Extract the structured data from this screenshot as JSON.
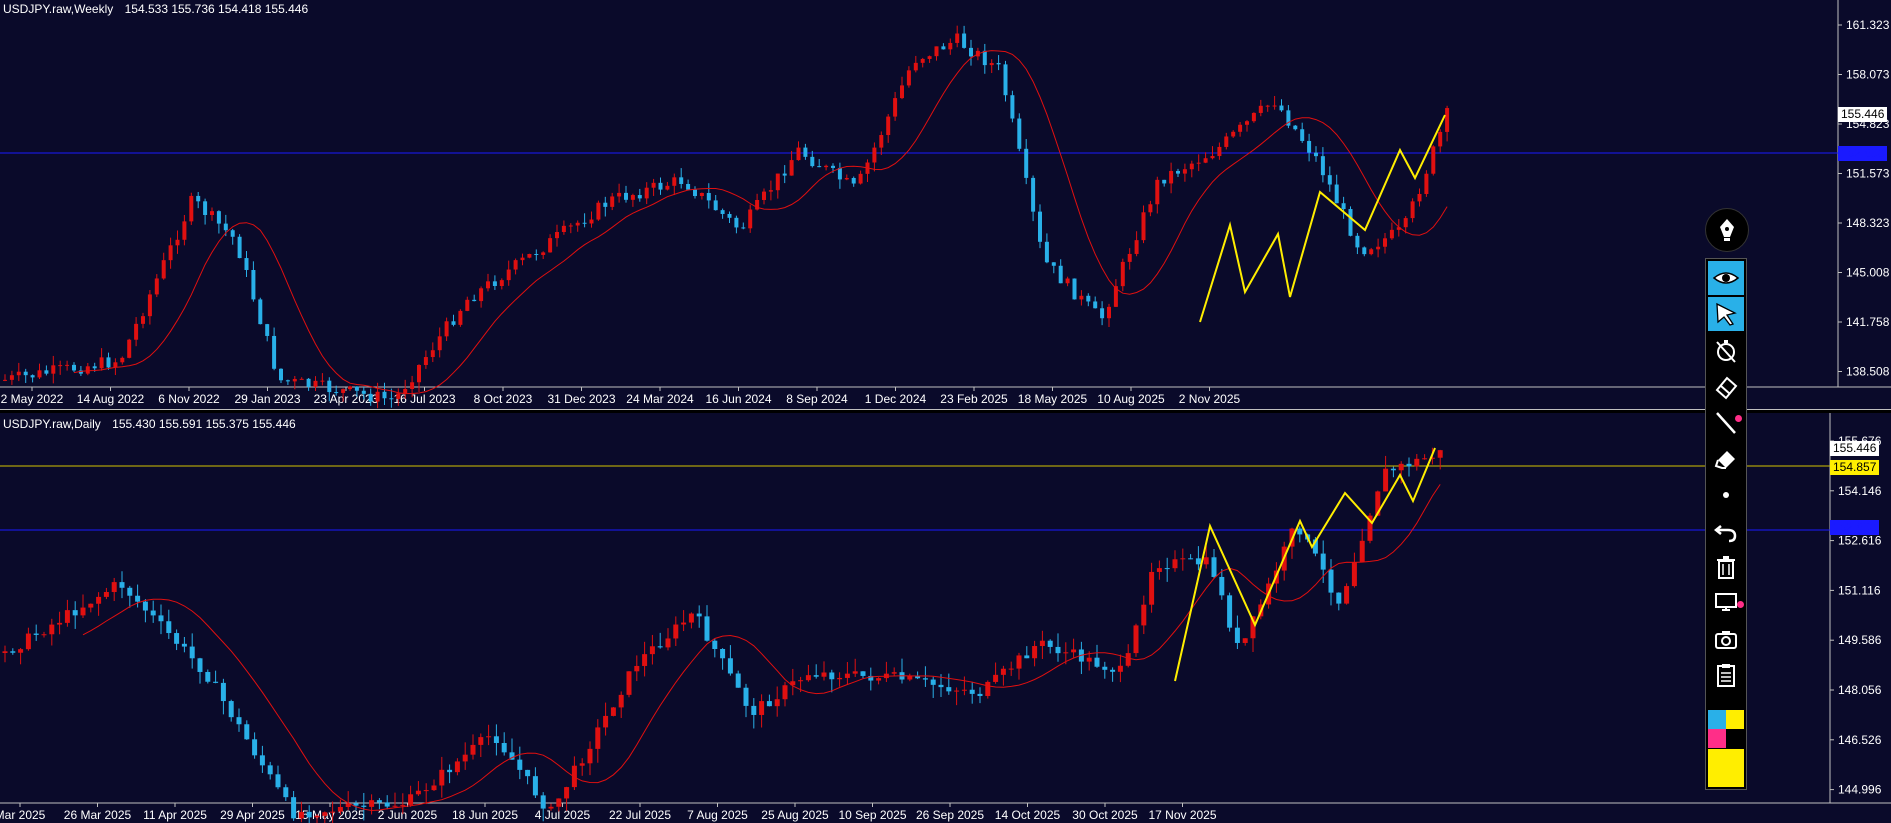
{
  "colors": {
    "background": "#0a0a2a",
    "bull": "#e01010",
    "bear": "#29b0e8",
    "ma": "#e01010",
    "zigzag": "#ffee00",
    "hline_blue": "#1a1aff",
    "hline_yellow": "#d4c400"
  },
  "top": {
    "symbol": "USDJPY.raw,Weekly",
    "ohlc": "154.533 155.736 154.418 155.446",
    "price_labels": [
      "161.323",
      "158.073",
      "154.823",
      "151.573",
      "148.323",
      "145.008",
      "141.758",
      "138.508"
    ],
    "current_price": "155.446",
    "blue_level": "152.800",
    "date_labels": [
      "2 May 2022",
      "14 Aug 2022",
      "6 Nov 2022",
      "29 Jan 2023",
      "23 Apr 2023",
      "16 Jul 2023",
      "8 Oct 2023",
      "31 Dec 2023",
      "24 Mar 2024",
      "16 Jun 2024",
      "8 Sep 2024",
      "1 Dec 2024",
      "23 Feb 2025",
      "18 May 2025",
      "10 Aug 2025",
      "2 Nov 2025"
    ]
  },
  "bottom": {
    "symbol": "USDJPY.raw,Daily",
    "ohlc": "155.430 155.591 155.375 155.446",
    "price_labels": [
      "155.676",
      "154.146",
      "152.616",
      "151.116",
      "149.586",
      "148.056",
      "146.526",
      "144.996"
    ],
    "current_price": "155.446",
    "yellow_level": "154.857",
    "blue_level": "152.800",
    "date_labels": [
      "Mar 2025",
      "26 Mar 2025",
      "11 Apr 2025",
      "29 Apr 2025",
      "15 May 2025",
      "2 Jun 2025",
      "18 Jun 2025",
      "4 Jul 2025",
      "22 Jul 2025",
      "7 Aug 2025",
      "25 Aug 2025",
      "10 Sep 2025",
      "26 Sep 2025",
      "14 Oct 2025",
      "30 Oct 2025",
      "17 Nov 2025"
    ]
  },
  "toolbar": {
    "items": [
      "eye-icon",
      "cursor-icon",
      "stopwatch-icon",
      "eraser-icon",
      "line-icon",
      "highlighter-icon",
      "dot-icon",
      "undo-icon",
      "trash-icon",
      "screen-icon",
      "camera-icon",
      "clipboard-icon",
      "color-palette-icon"
    ]
  }
}
